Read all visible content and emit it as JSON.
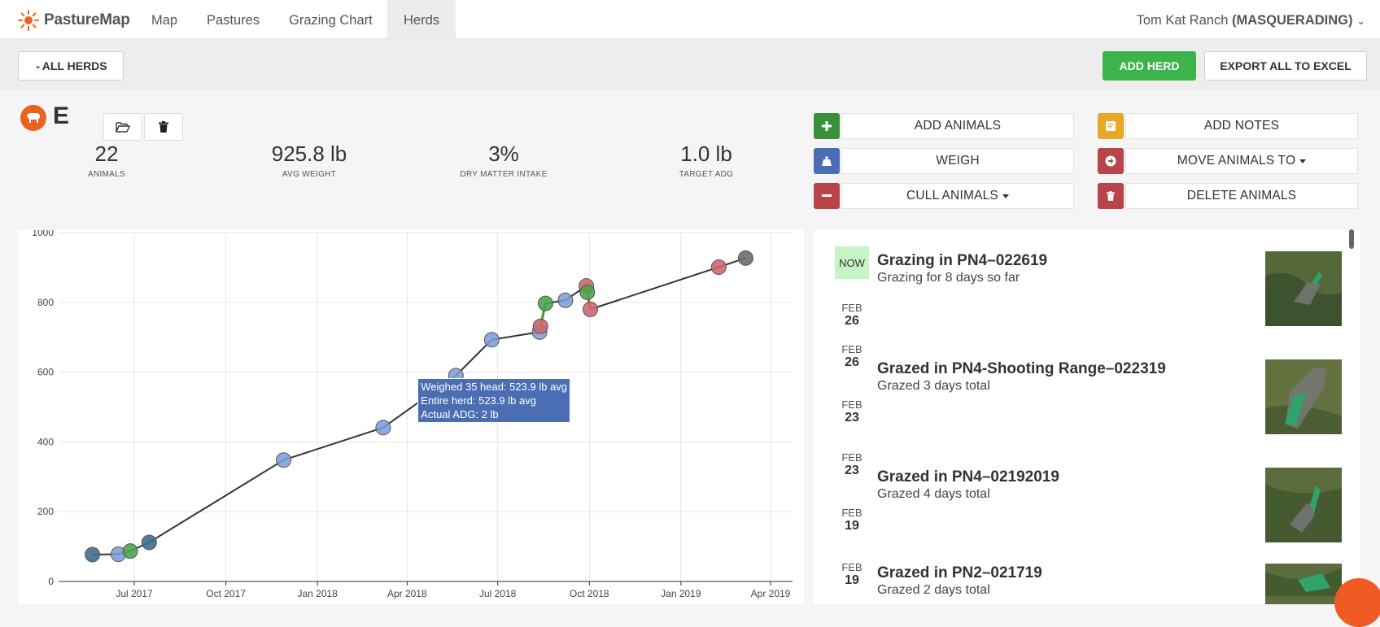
{
  "nav": {
    "brand": "PastureMap",
    "items": [
      {
        "label": "Map"
      },
      {
        "label": "Pastures"
      },
      {
        "label": "Grazing Chart"
      },
      {
        "label": "Herds"
      }
    ],
    "user": "Tom Kat Ranch",
    "masquerade": "(MASQUERADING)"
  },
  "toolbar": {
    "filter_label": "ALL HERDS",
    "add_herd_label": "ADD HERD",
    "export_label": "EXPORT ALL TO EXCEL"
  },
  "herd": {
    "name": "E",
    "stats": [
      {
        "value": "22",
        "label": "ANIMALS"
      },
      {
        "value": "925.8 lb",
        "label": "AVG WEIGHT"
      },
      {
        "value": "3%",
        "label": "DRY MATTER INTAKE"
      },
      {
        "value": "1.0 lb",
        "label": "TARGET ADG"
      }
    ]
  },
  "actions": {
    "add_animals": "ADD ANIMALS",
    "add_notes": "ADD NOTES",
    "weigh": "WEIGH",
    "move_animals": "MOVE ANIMALS TO",
    "cull_animals": "CULL ANIMALS",
    "delete_animals": "DELETE ANIMALS"
  },
  "colors": {
    "green": "#3cb44b",
    "yellow": "#e8a825",
    "blue": "#4a6db4",
    "red": "#b9444a",
    "orange": "#e8641e"
  },
  "chart_data": {
    "type": "line",
    "ylim": [
      0,
      1000
    ],
    "y_ticks": [
      0,
      200,
      400,
      600,
      800,
      1000
    ],
    "x_ticks": [
      "Jul 2017",
      "Oct 2017",
      "Jan 2018",
      "Apr 2018",
      "Jul 2018",
      "Oct 2018",
      "Jan 2019",
      "Apr 2019"
    ],
    "grid": true,
    "points": [
      {
        "x": "2017-05-20",
        "y": 77,
        "kind": "dark"
      },
      {
        "x": "2017-06-15",
        "y": 78,
        "kind": "blue"
      },
      {
        "x": "2017-06-27",
        "y": 87,
        "kind": "green"
      },
      {
        "x": "2017-07-16",
        "y": 112,
        "kind": "dark"
      },
      {
        "x": "2017-11-28",
        "y": 348,
        "kind": "blue"
      },
      {
        "x": "2018-03-08",
        "y": 441,
        "kind": "blue"
      },
      {
        "x": "2018-05-20",
        "y": 590,
        "kind": "blue"
      },
      {
        "x": "2018-06-25",
        "y": 693,
        "kind": "blue"
      },
      {
        "x": "2018-08-12",
        "y": 715,
        "kind": "blue"
      },
      {
        "x": "2018-08-13",
        "y": 731,
        "kind": "red"
      },
      {
        "x": "2018-08-18",
        "y": 797,
        "kind": "green"
      },
      {
        "x": "2018-09-07",
        "y": 806,
        "kind": "blue"
      },
      {
        "x": "2018-09-28",
        "y": 847,
        "kind": "red"
      },
      {
        "x": "2018-09-29",
        "y": 829,
        "kind": "green"
      },
      {
        "x": "2018-10-02",
        "y": 780,
        "kind": "red"
      },
      {
        "x": "2019-02-08",
        "y": 901,
        "kind": "red"
      },
      {
        "x": "2019-03-07",
        "y": 927,
        "kind": "gray"
      }
    ],
    "tooltip": {
      "lines": [
        "Weighed 35 head: 523.9 lb avg",
        "Entire herd: 523.9 lb avg",
        "Actual ADG: 2 lb"
      ]
    }
  },
  "timeline": [
    {
      "top_label": "NOW",
      "bottom": {
        "m": "FEB",
        "d": "26"
      },
      "title": "Grazing in PN4–022619",
      "sub": "Grazing for 8 days so far"
    },
    {
      "top": {
        "m": "FEB",
        "d": "26"
      },
      "bottom": {
        "m": "FEB",
        "d": "23"
      },
      "title": "Grazed in PN4-Shooting Range–022319",
      "sub": "Grazed 3 days total"
    },
    {
      "top": {
        "m": "FEB",
        "d": "23"
      },
      "bottom": {
        "m": "FEB",
        "d": "19"
      },
      "title": "Grazed in PN4–02192019",
      "sub": "Grazed 4 days total"
    },
    {
      "top": {
        "m": "FEB",
        "d": "19"
      },
      "title": "Grazed in PN2–021719",
      "sub": "Grazed 2 days total"
    }
  ]
}
